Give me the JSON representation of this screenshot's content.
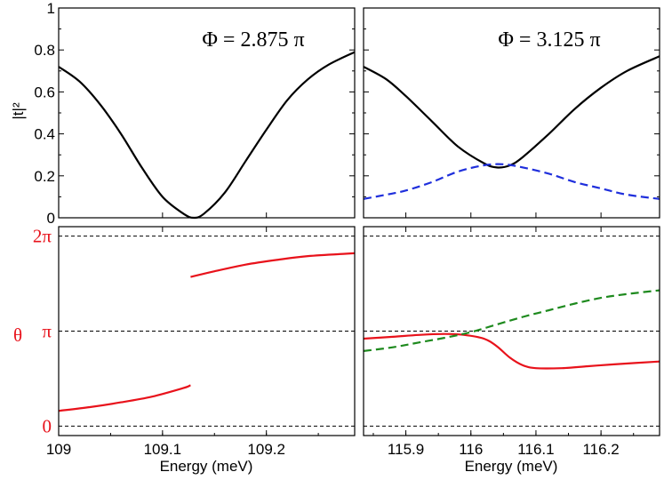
{
  "figure": {
    "panel_titles": [
      "Φ = 2.875 π",
      "Φ = 3.125 π"
    ],
    "colors": {
      "transmission": "#000000",
      "transmission_dashed": "#1f2fdc",
      "phase": "#e8121b",
      "phase_dashed": "#1e8a1e",
      "ref_lines": "#000000"
    }
  },
  "chart_data": [
    {
      "type": "line",
      "panel": "top-left",
      "title": "Φ = 2.875 π",
      "ylabel": "|t|²",
      "xlim": [
        109.0,
        109.285
      ],
      "ylim": [
        0,
        1
      ],
      "yticks": [
        0,
        0.2,
        0.4,
        0.6,
        0.8,
        1
      ],
      "ytick_labels": [
        "0",
        "0.2",
        "0.4",
        "0.6",
        "0.8",
        "1"
      ],
      "series": [
        {
          "style": "solid",
          "color": "#000000",
          "x": [
            109.0,
            109.02,
            109.04,
            109.06,
            109.08,
            109.1,
            109.12,
            109.13,
            109.14,
            109.16,
            109.18,
            109.2,
            109.22,
            109.24,
            109.26,
            109.285
          ],
          "y": [
            0.72,
            0.65,
            0.54,
            0.4,
            0.24,
            0.1,
            0.02,
            0.0,
            0.02,
            0.12,
            0.27,
            0.42,
            0.56,
            0.66,
            0.73,
            0.79
          ]
        }
      ]
    },
    {
      "type": "line",
      "panel": "top-right",
      "title": "Φ = 3.125 π",
      "xlim": [
        115.835,
        116.29
      ],
      "ylim": [
        0,
        1
      ],
      "yticks": [
        0,
        0.2,
        0.4,
        0.6,
        0.8,
        1
      ],
      "series": [
        {
          "style": "solid",
          "color": "#000000",
          "x": [
            115.835,
            115.87,
            115.9,
            115.94,
            115.98,
            116.02,
            116.04,
            116.06,
            116.08,
            116.12,
            116.16,
            116.2,
            116.24,
            116.29
          ],
          "y": [
            0.72,
            0.66,
            0.58,
            0.46,
            0.34,
            0.26,
            0.24,
            0.25,
            0.29,
            0.4,
            0.52,
            0.62,
            0.7,
            0.77
          ]
        },
        {
          "style": "dashed",
          "color": "#1f2fdc",
          "x": [
            115.835,
            115.87,
            115.9,
            115.94,
            115.98,
            116.02,
            116.05,
            116.08,
            116.12,
            116.16,
            116.2,
            116.24,
            116.29
          ],
          "y": [
            0.09,
            0.11,
            0.13,
            0.17,
            0.22,
            0.25,
            0.255,
            0.24,
            0.21,
            0.17,
            0.14,
            0.11,
            0.09
          ]
        }
      ]
    },
    {
      "type": "line",
      "panel": "bottom-left",
      "ylabel": "θ",
      "xlabel": "Energy (meV)",
      "xlim": [
        109.0,
        109.285
      ],
      "xticks": [
        109,
        109.1,
        109.2
      ],
      "xtick_labels": [
        "109",
        "109.1",
        "109.2"
      ],
      "ylim": [
        -0.1,
        2.1
      ],
      "yticks": [
        0,
        1,
        2
      ],
      "ytick_labels": [
        "0",
        "π",
        "2π"
      ],
      "ylim_unit": "π",
      "ref_lines": [
        0,
        1,
        2
      ],
      "series": [
        {
          "style": "solid",
          "color": "#e8121b",
          "segment": 1,
          "x": [
            109.0,
            109.03,
            109.06,
            109.09,
            109.12,
            109.127
          ],
          "y": [
            0.16,
            0.2,
            0.25,
            0.31,
            0.4,
            0.43
          ]
        },
        {
          "style": "solid",
          "color": "#e8121b",
          "segment": 2,
          "x": [
            109.127,
            109.15,
            109.18,
            109.21,
            109.24,
            109.285
          ],
          "y": [
            1.57,
            1.63,
            1.7,
            1.75,
            1.79,
            1.82
          ]
        }
      ]
    },
    {
      "type": "line",
      "panel": "bottom-right",
      "xlabel": "Energy (meV)",
      "xlim": [
        115.835,
        116.29
      ],
      "xticks": [
        115.9,
        116.0,
        116.1,
        116.2
      ],
      "xtick_labels": [
        "115.9",
        "116",
        "116.1",
        "116.2"
      ],
      "ylim": [
        -0.1,
        2.1
      ],
      "ref_lines": [
        0,
        1,
        2
      ],
      "series": [
        {
          "style": "solid",
          "color": "#e8121b",
          "x": [
            115.835,
            115.88,
            115.92,
            115.96,
            115.99,
            116.02,
            116.04,
            116.06,
            116.08,
            116.1,
            116.14,
            116.18,
            116.22,
            116.29
          ],
          "y": [
            0.92,
            0.94,
            0.96,
            0.97,
            0.96,
            0.92,
            0.84,
            0.72,
            0.64,
            0.61,
            0.61,
            0.63,
            0.65,
            0.68
          ]
        },
        {
          "style": "dashed",
          "color": "#1e8a1e",
          "x": [
            115.835,
            115.88,
            115.92,
            115.96,
            116.0,
            116.04,
            116.08,
            116.12,
            116.16,
            116.2,
            116.24,
            116.29
          ],
          "y": [
            0.79,
            0.83,
            0.88,
            0.93,
            0.99,
            1.07,
            1.15,
            1.22,
            1.29,
            1.35,
            1.39,
            1.43
          ]
        }
      ]
    }
  ]
}
